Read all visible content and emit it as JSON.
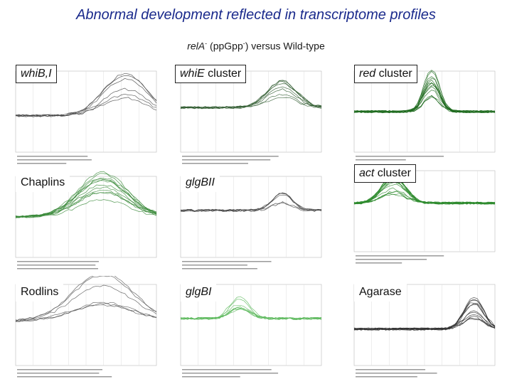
{
  "slide": {
    "title": "Abnormal development reflected in transcriptome profiles",
    "subtitle_rel": "relA",
    "subtitle_minus1": "-",
    "subtitle_mid": " (ppGpp",
    "subtitle_minus2": "-",
    "subtitle_end": ") versus Wild-type"
  },
  "panels": [
    {
      "label_italic": "whiB,I",
      "label_plain": "",
      "color": "#444444"
    },
    {
      "label_italic": "whiE",
      "label_plain": " cluster",
      "color": "#2f5a2f"
    },
    {
      "label_italic": "red",
      "label_plain": " cluster",
      "color": "#1f6b1f"
    },
    {
      "label_italic": "",
      "label_plain": "Chaplins",
      "color": "#3a8a3a"
    },
    {
      "label_italic": "glgBII",
      "label_plain": "",
      "color": "#444444"
    },
    {
      "label_italic": "act",
      "label_plain": " cluster",
      "color": "#2e8b2e"
    },
    {
      "label_italic": "",
      "label_plain": "Rodlins",
      "color": "#555555"
    },
    {
      "label_italic": "glgBI",
      "label_plain": "",
      "color": "#5cb85c"
    },
    {
      "label_italic": "",
      "label_plain": "Agarase",
      "color": "#333333"
    }
  ]
}
